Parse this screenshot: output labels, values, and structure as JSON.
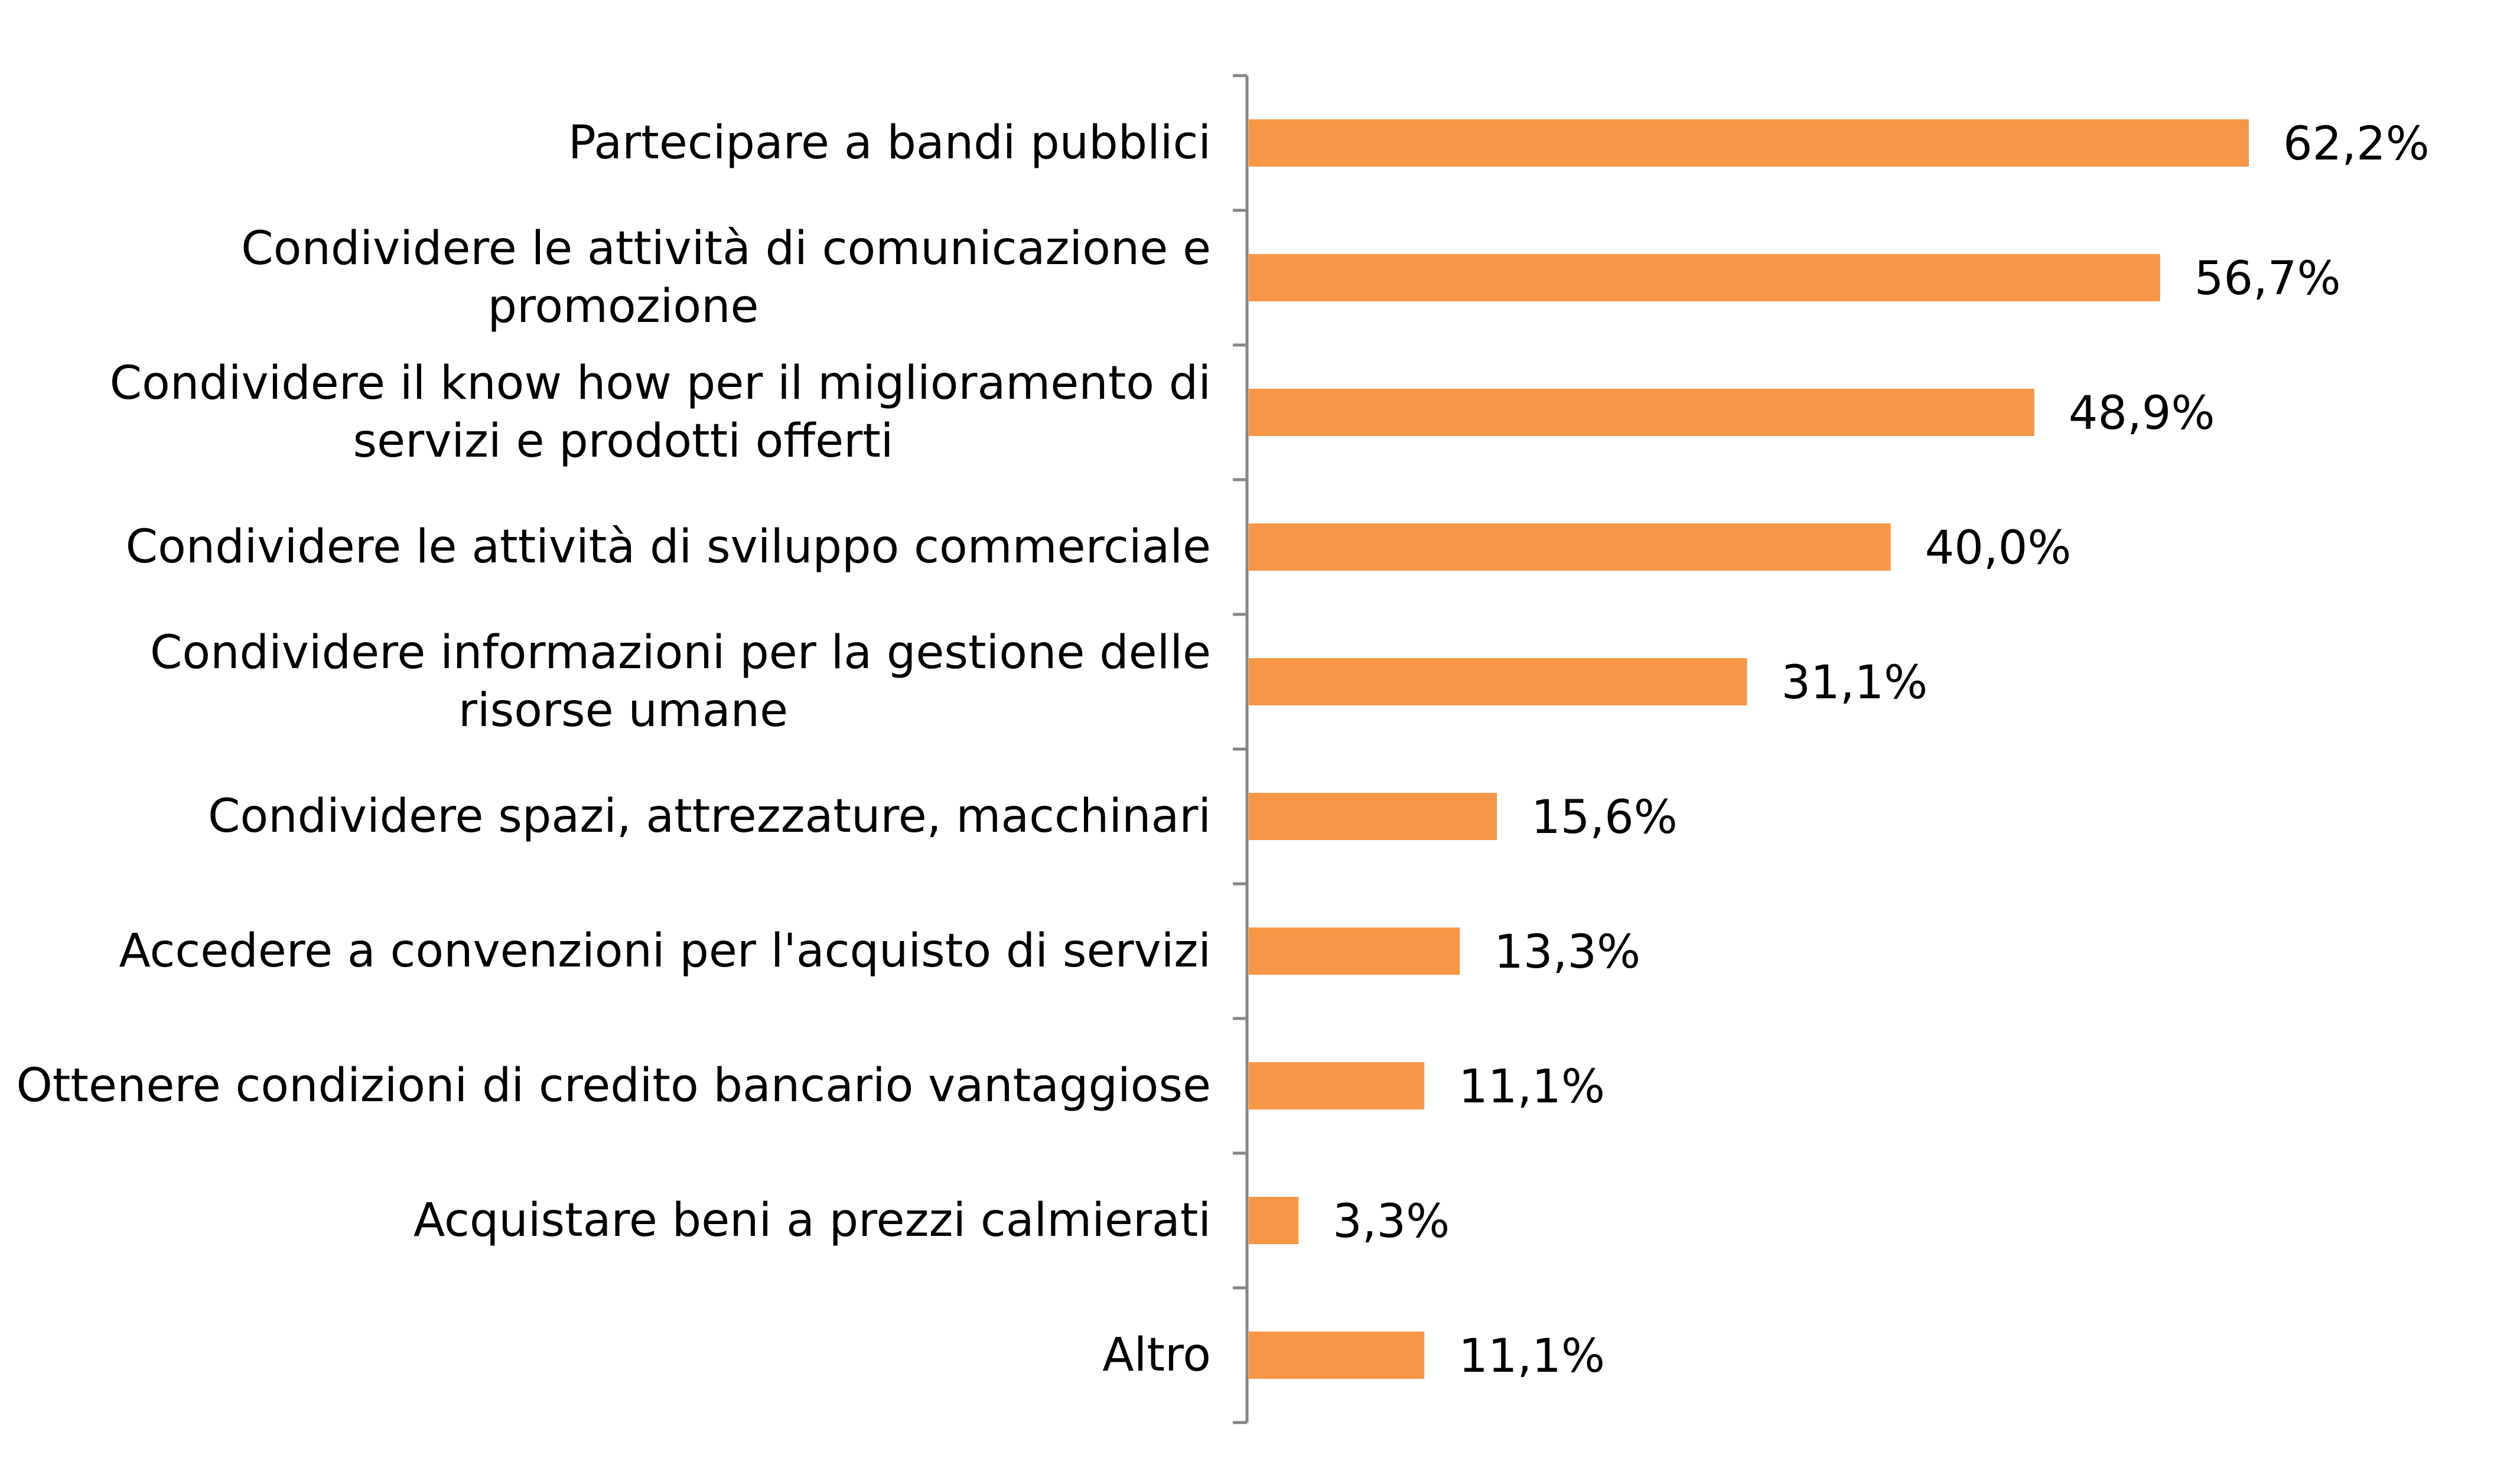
{
  "colors": {
    "bar": "#f79646",
    "bar_edge": "#ffffff",
    "axis": "#868686",
    "text": "#000000"
  },
  "chart_data": {
    "type": "bar",
    "orientation": "horizontal",
    "title": "",
    "xlabel": "",
    "ylabel": "",
    "xlim": [
      0,
      62.2
    ],
    "grid": false,
    "legend": "none",
    "categories": [
      "Partecipare a bandi pubblici",
      "Condividere le attività  di comunicazione e promozione",
      "Condividere il know how per il miglioramento di servizi e prodotti offerti",
      "Condividere le attività di sviluppo commerciale",
      "Condividere informazioni per la gestione delle risorse umane",
      "Condividere spazi, attrezzature, macchinari",
      "Accedere a convenzioni per l'acquisto di servizi",
      "Ottenere condizioni di credito bancario vantaggiose",
      "Acquistare beni a prezzi calmierati",
      "Altro"
    ],
    "values": [
      62.2,
      56.7,
      48.9,
      40.0,
      31.1,
      15.6,
      13.3,
      11.1,
      3.3,
      11.1
    ],
    "value_labels": [
      "62,2%",
      "56,7%",
      "48,9%",
      "40,0%",
      "31,1%",
      "15,6%",
      "13,3%",
      "11,1%",
      "3,3%",
      "11,1%"
    ]
  }
}
